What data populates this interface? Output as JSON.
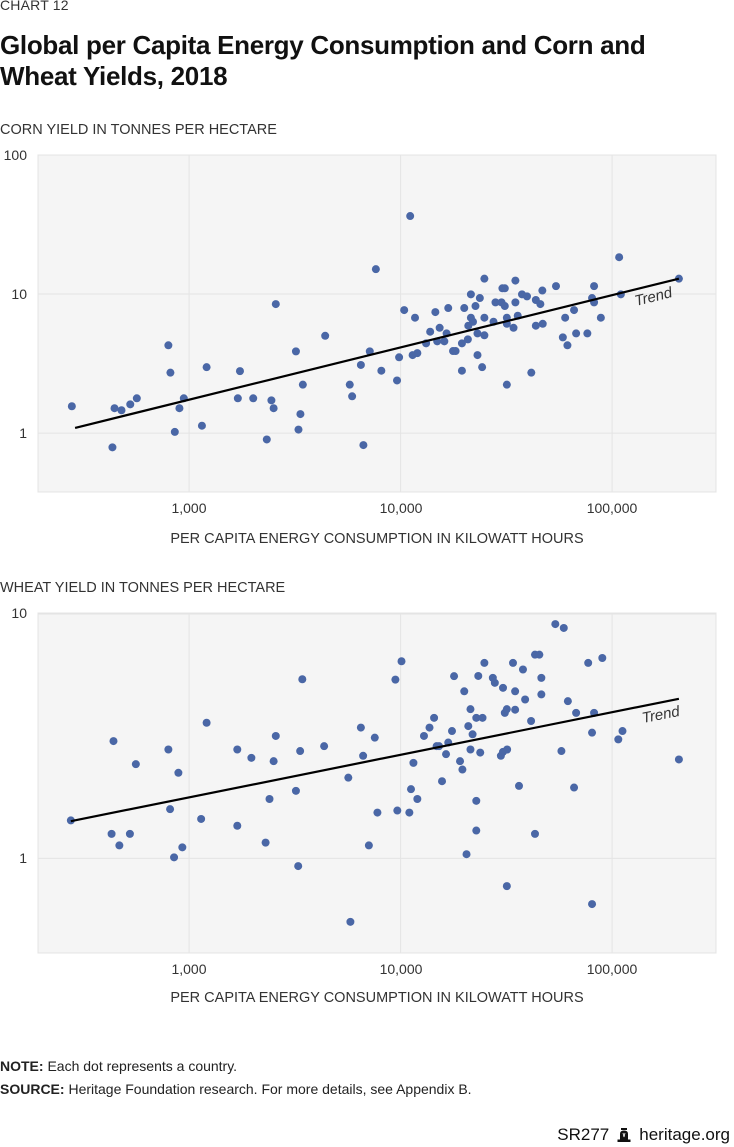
{
  "header": {
    "eyebrow": "CHART 12",
    "title": "Global per Capita Energy Consumption and Corn and Wheat Yields, 2018"
  },
  "notes": {
    "note_label": "NOTE:",
    "note_text": " Each dot represents a country.",
    "source_label": "SOURCE:",
    "source_text": " Heritage Foundation research. For more details, see Appendix B."
  },
  "footer": {
    "report_id": "SR277",
    "logo_icon": "liberty-bell-icon",
    "site": "heritage.org"
  },
  "colors": {
    "dot": "#4a67a6",
    "plot_bg": "#f5f5f5",
    "grid": "#e4e4e4",
    "trend": "#000000"
  },
  "chart_data": [
    {
      "type": "scatter",
      "title": "Corn",
      "ylabel": "CORN YIELD IN TONNES PER HECTARE",
      "xlabel": "PER CAPITA ENERGY CONSUMPTION IN KILOWATT HOURS",
      "xscale": "log",
      "yscale": "log",
      "xlim": [
        193,
        310000
      ],
      "ylim": [
        0.377,
        100
      ],
      "xticks": [
        1000,
        10000,
        100000
      ],
      "xtick_labels": [
        "1,000",
        "10,000",
        "100,000"
      ],
      "yticks": [
        1,
        10,
        100
      ],
      "ytick_labels": [
        "1",
        "10",
        "100"
      ],
      "grid": true,
      "legend": "none",
      "trend_label": "Trend",
      "trend": {
        "x": [
          289,
          207000
        ],
        "y": [
          1.09,
          12.9
        ]
      },
      "points": [
        [
          279,
          1.56
        ],
        [
          434,
          0.79
        ],
        [
          444,
          1.51
        ],
        [
          479,
          1.46
        ],
        [
          527,
          1.61
        ],
        [
          566,
          1.78
        ],
        [
          798,
          4.28
        ],
        [
          816,
          2.72
        ],
        [
          856,
          1.02
        ],
        [
          900,
          1.51
        ],
        [
          944,
          1.78
        ],
        [
          1150,
          1.13
        ],
        [
          1210,
          2.98
        ],
        [
          1700,
          1.78
        ],
        [
          1740,
          2.79
        ],
        [
          2010,
          1.78
        ],
        [
          2330,
          0.9
        ],
        [
          2450,
          1.72
        ],
        [
          2510,
          1.51
        ],
        [
          2570,
          8.47
        ],
        [
          3200,
          3.87
        ],
        [
          3290,
          1.06
        ],
        [
          3360,
          1.37
        ],
        [
          3450,
          2.23
        ],
        [
          4400,
          5.01
        ],
        [
          5750,
          2.23
        ],
        [
          5900,
          1.84
        ],
        [
          6670,
          0.82
        ],
        [
          6490,
          3.09
        ],
        [
          7150,
          3.87
        ],
        [
          7640,
          15.1
        ],
        [
          8110,
          2.81
        ],
        [
          9620,
          2.39
        ],
        [
          9840,
          3.51
        ],
        [
          10400,
          7.67
        ],
        [
          11100,
          36.4
        ],
        [
          11400,
          3.64
        ],
        [
          12000,
          3.76
        ],
        [
          11700,
          6.76
        ],
        [
          13200,
          4.42
        ],
        [
          13800,
          5.36
        ],
        [
          14600,
          7.42
        ],
        [
          15300,
          5.72
        ],
        [
          14900,
          4.57
        ],
        [
          16100,
          4.57
        ],
        [
          16500,
          5.21
        ],
        [
          16800,
          7.93
        ],
        [
          17700,
          3.89
        ],
        [
          18200,
          3.89
        ],
        [
          19500,
          2.81
        ],
        [
          19500,
          4.42
        ],
        [
          20000,
          7.93
        ],
        [
          20800,
          4.72
        ],
        [
          20900,
          5.92
        ],
        [
          21500,
          6.76
        ],
        [
          22000,
          6.32
        ],
        [
          21500,
          9.95
        ],
        [
          22600,
          8.2
        ],
        [
          23100,
          3.64
        ],
        [
          23100,
          5.21
        ],
        [
          23700,
          9.36
        ],
        [
          24300,
          2.98
        ],
        [
          24900,
          12.9
        ],
        [
          24900,
          6.76
        ],
        [
          24900,
          5.05
        ],
        [
          27500,
          6.32
        ],
        [
          28100,
          8.71
        ],
        [
          30000,
          8.71
        ],
        [
          30300,
          11.0
        ],
        [
          31100,
          11.0
        ],
        [
          31100,
          8.2
        ],
        [
          31800,
          6.76
        ],
        [
          31800,
          6.11
        ],
        [
          31800,
          2.23
        ],
        [
          34200,
          5.72
        ],
        [
          34900,
          8.71
        ],
        [
          34900,
          12.5
        ],
        [
          35800,
          6.98
        ],
        [
          37500,
          9.95
        ],
        [
          39600,
          9.62
        ],
        [
          41500,
          2.72
        ],
        [
          43600,
          9.06
        ],
        [
          45800,
          8.47
        ],
        [
          43600,
          5.92
        ],
        [
          47000,
          6.11
        ],
        [
          46800,
          10.6
        ],
        [
          54300,
          11.4
        ],
        [
          58500,
          4.88
        ],
        [
          61500,
          4.28
        ],
        [
          60000,
          6.76
        ],
        [
          66100,
          7.67
        ],
        [
          67600,
          5.21
        ],
        [
          76400,
          5.21
        ],
        [
          80400,
          9.36
        ],
        [
          82200,
          11.4
        ],
        [
          82200,
          8.71
        ],
        [
          88500,
          6.76
        ],
        [
          108000,
          18.4
        ],
        [
          110000,
          9.95
        ],
        [
          207000,
          12.9
        ]
      ]
    },
    {
      "type": "scatter",
      "title": "Wheat",
      "ylabel": "WHEAT YIELD IN TONNES PER HECTARE",
      "xlabel": "PER CAPITA ENERGY CONSUMPTION IN KILOWATT HOURS",
      "xscale": "log",
      "yscale": "log",
      "xlim": [
        193,
        310000
      ],
      "ylim": [
        0.41,
        10.1
      ],
      "xticks": [
        1000,
        10000,
        100000
      ],
      "xtick_labels": [
        "1,000",
        "10,000",
        "100,000"
      ],
      "yticks": [
        1,
        10
      ],
      "ytick_labels": [
        "1",
        "10"
      ],
      "grid": true,
      "legend": "none",
      "trend_label": "Trend",
      "trend": {
        "x": [
          276,
          207000
        ],
        "y": [
          1.42,
          4.5
        ]
      },
      "points": [
        [
          276,
          1.43
        ],
        [
          439,
          3.02
        ],
        [
          430,
          1.26
        ],
        [
          468,
          1.13
        ],
        [
          525,
          1.26
        ],
        [
          560,
          2.43
        ],
        [
          798,
          2.79
        ],
        [
          890,
          2.24
        ],
        [
          813,
          1.59
        ],
        [
          849,
          1.01
        ],
        [
          929,
          1.11
        ],
        [
          1210,
          3.59
        ],
        [
          1140,
          1.45
        ],
        [
          1690,
          2.79
        ],
        [
          1690,
          1.36
        ],
        [
          1970,
          2.58
        ],
        [
          2300,
          1.16
        ],
        [
          2510,
          2.5
        ],
        [
          2570,
          3.17
        ],
        [
          2400,
          1.75
        ],
        [
          3200,
          1.89
        ],
        [
          3350,
          2.75
        ],
        [
          3430,
          5.41
        ],
        [
          3280,
          0.93
        ],
        [
          4350,
          2.88
        ],
        [
          5660,
          2.14
        ],
        [
          5790,
          0.55
        ],
        [
          6490,
          3.43
        ],
        [
          6650,
          2.63
        ],
        [
          7080,
          1.13
        ],
        [
          7550,
          3.12
        ],
        [
          7770,
          1.54
        ],
        [
          9450,
          5.39
        ],
        [
          10100,
          6.41
        ],
        [
          9650,
          1.57
        ],
        [
          11000,
          1.54
        ],
        [
          11200,
          1.92
        ],
        [
          12000,
          1.75
        ],
        [
          11500,
          2.46
        ],
        [
          12900,
          3.17
        ],
        [
          13700,
          3.43
        ],
        [
          14400,
          3.76
        ],
        [
          14800,
          2.88
        ],
        [
          15200,
          2.88
        ],
        [
          15700,
          2.07
        ],
        [
          16400,
          2.67
        ],
        [
          16800,
          2.98
        ],
        [
          17500,
          3.32
        ],
        [
          17900,
          5.57
        ],
        [
          19100,
          2.5
        ],
        [
          19600,
          2.31
        ],
        [
          20000,
          4.83
        ],
        [
          20500,
          1.04
        ],
        [
          20900,
          3.48
        ],
        [
          21400,
          4.08
        ],
        [
          21400,
          2.79
        ],
        [
          21900,
          3.22
        ],
        [
          22800,
          3.76
        ],
        [
          22800,
          1.72
        ],
        [
          22800,
          1.3
        ],
        [
          23300,
          5.58
        ],
        [
          23800,
          2.71
        ],
        [
          24400,
          3.76
        ],
        [
          24900,
          6.31
        ],
        [
          27300,
          5.48
        ],
        [
          27900,
          5.23
        ],
        [
          30500,
          4.99
        ],
        [
          29800,
          2.63
        ],
        [
          30500,
          2.73
        ],
        [
          31900,
          2.79
        ],
        [
          31100,
          3.94
        ],
        [
          31800,
          4.08
        ],
        [
          31800,
          0.77
        ],
        [
          34000,
          6.31
        ],
        [
          34800,
          4.83
        ],
        [
          34800,
          4.06
        ],
        [
          36300,
          1.98
        ],
        [
          37900,
          5.93
        ],
        [
          38800,
          4.47
        ],
        [
          41400,
          3.65
        ],
        [
          43200,
          1.26
        ],
        [
          43200,
          6.82
        ],
        [
          45300,
          6.82
        ],
        [
          46300,
          5.48
        ],
        [
          46300,
          4.69
        ],
        [
          53900,
          9.1
        ],
        [
          59100,
          8.77
        ],
        [
          57600,
          2.75
        ],
        [
          61800,
          4.4
        ],
        [
          66100,
          1.95
        ],
        [
          67600,
          3.94
        ],
        [
          77100,
          6.31
        ],
        [
          80400,
          3.27
        ],
        [
          80400,
          0.65
        ],
        [
          82200,
          3.94
        ],
        [
          89900,
          6.61
        ],
        [
          107000,
          3.07
        ],
        [
          112000,
          3.32
        ],
        [
          207000,
          2.54
        ]
      ]
    }
  ]
}
